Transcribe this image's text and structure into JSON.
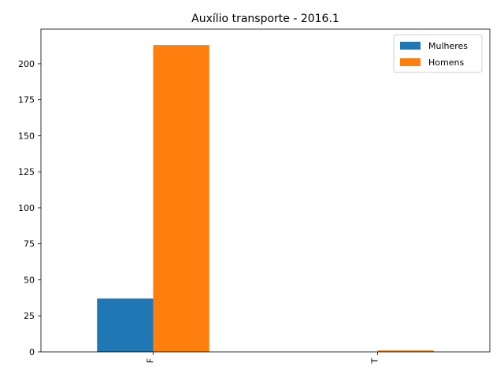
{
  "chart_data": {
    "type": "bar",
    "title": "Auxílio transporte - 2016.1",
    "xlabel": "",
    "ylabel": "",
    "categories": [
      "F",
      "T"
    ],
    "series": [
      {
        "name": "Mulheres",
        "values": [
          37,
          0
        ],
        "color": "#1f77b4"
      },
      {
        "name": "Homens",
        "values": [
          213,
          1
        ],
        "color": "#ff7f0e"
      }
    ],
    "ylim": [
      0,
      224
    ],
    "yticks": [
      0,
      25,
      50,
      75,
      100,
      125,
      150,
      175,
      200
    ],
    "legend": "top-right",
    "grid": false
  }
}
